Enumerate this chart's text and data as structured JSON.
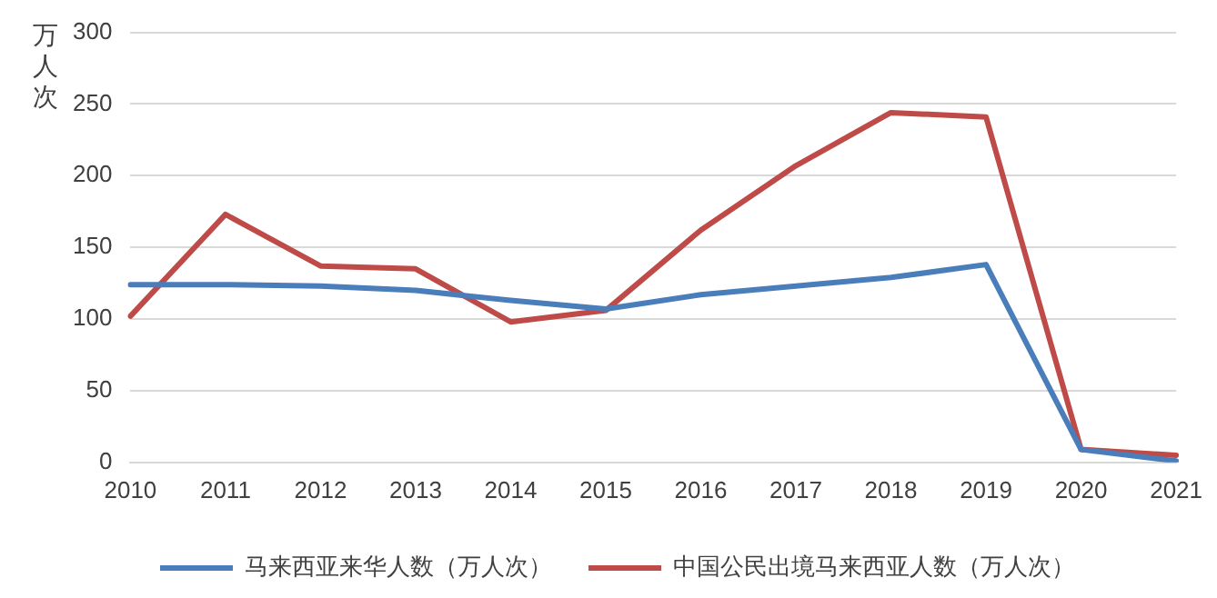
{
  "chart_data": {
    "type": "line",
    "ylabel": "万人次",
    "categories": [
      "2010",
      "2011",
      "2012",
      "2013",
      "2014",
      "2015",
      "2016",
      "2017",
      "2018",
      "2019",
      "2020",
      "2021"
    ],
    "series": [
      {
        "name": "马来西亚来华人数（万人次）",
        "color": "#4a7ebb",
        "values": [
          124,
          124,
          123,
          120,
          113,
          107,
          117,
          123,
          129,
          138,
          9,
          1
        ]
      },
      {
        "name": "中国公民出境马来西亚人数（万人次）",
        "color": "#be4b48",
        "values": [
          102,
          173,
          137,
          135,
          98,
          106,
          162,
          207,
          244,
          241,
          9,
          5
        ]
      }
    ],
    "ylim": [
      0,
      300
    ],
    "yticks": [
      0,
      50,
      100,
      150,
      200,
      250,
      300
    ],
    "grid": "y",
    "legend": "bottom",
    "marker": "none",
    "line_style": "solid"
  }
}
